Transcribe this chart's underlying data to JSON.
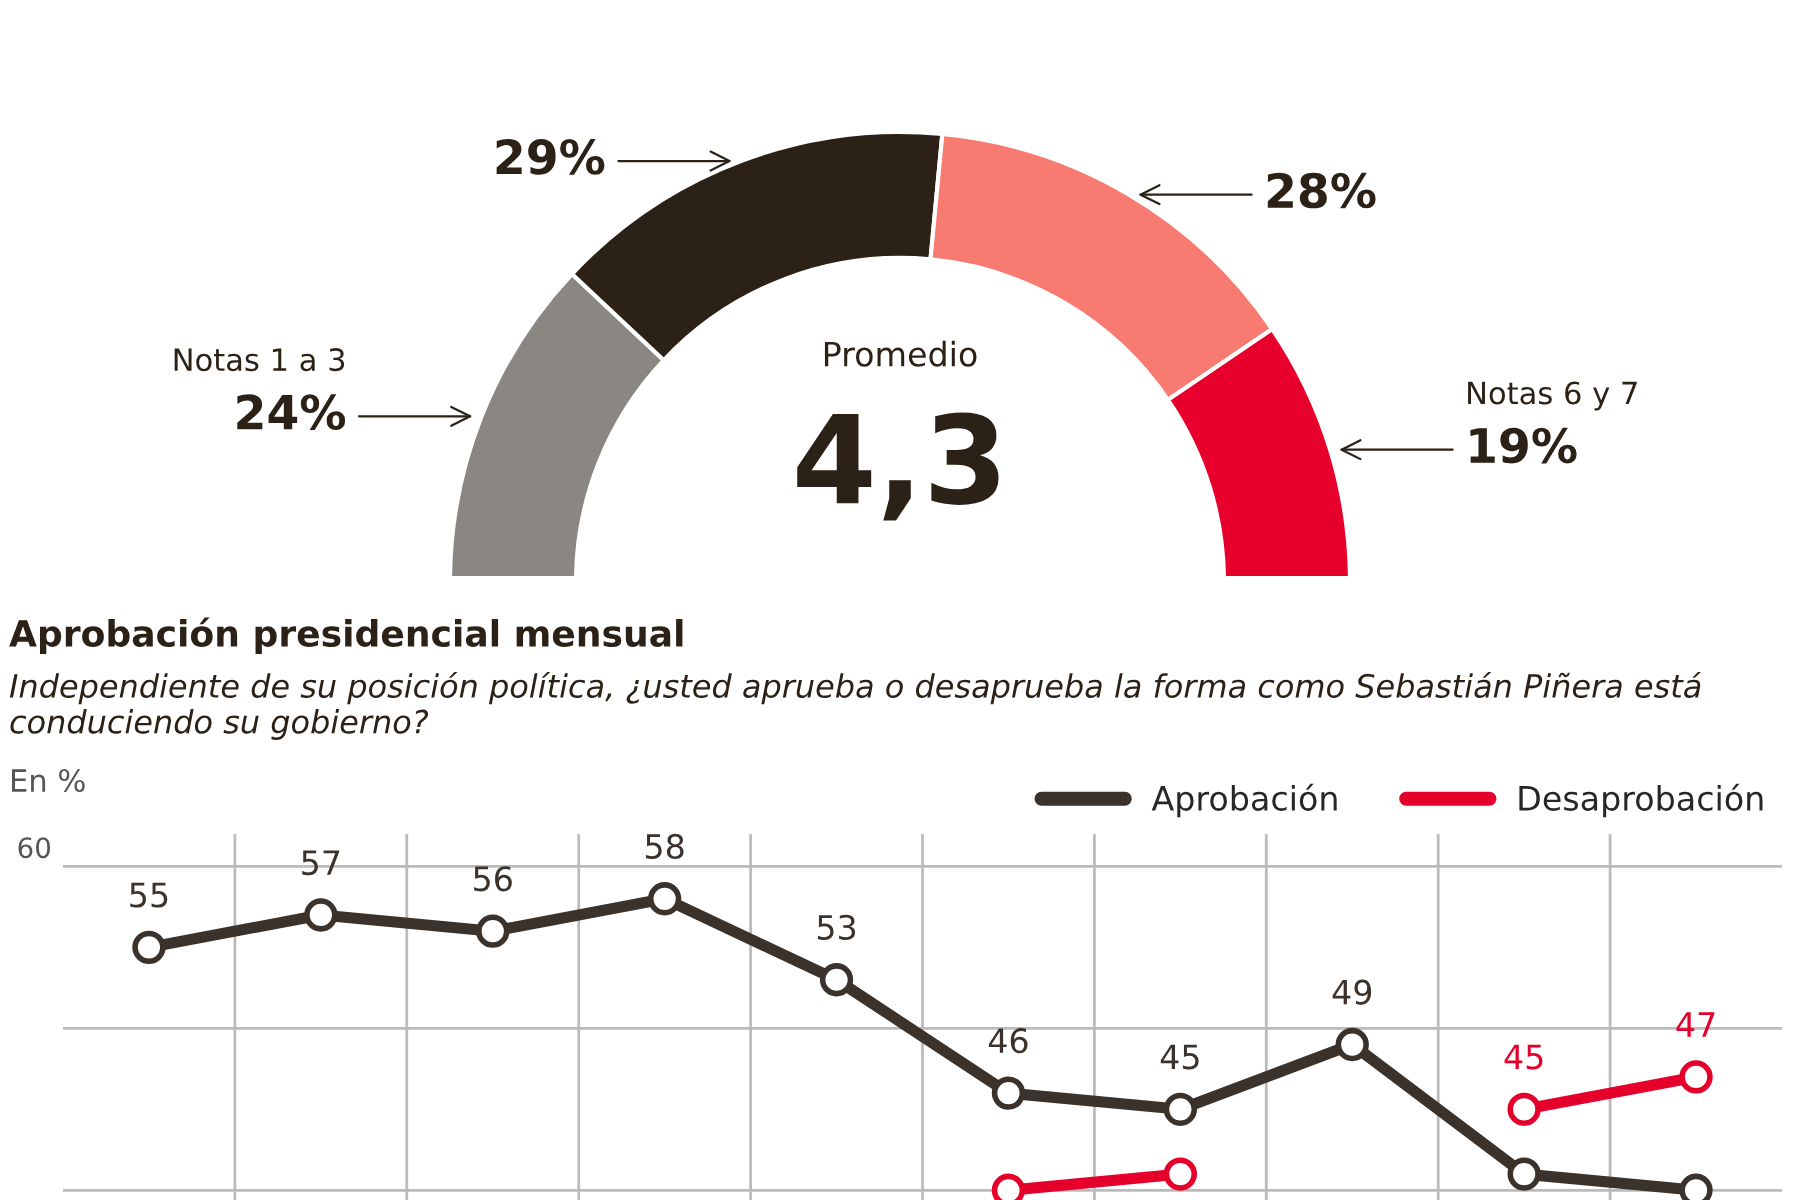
{
  "chart_data": [
    {
      "type": "donut",
      "categories": [
        "Notas 1 a 3",
        null,
        null,
        "Notas 6 y 7"
      ],
      "values": [
        24,
        29,
        28,
        19
      ],
      "colors": [
        "#8a8782",
        "#2b2116",
        "#f77b70",
        "#e8002d"
      ],
      "value_labels": [
        "24%",
        "29%",
        "28%",
        "19%"
      ],
      "annotations": [
        "Promedio",
        "4,3"
      ]
    },
    {
      "type": "line",
      "title": "Aprobación presidencial mensual",
      "subtitle": "Independiente de su posición política, ¿usted aprueba o desaprueba la forma como Sebastián Piñera está conduciendo su gobierno?",
      "ylabel": "En %",
      "categories": [
        null,
        null,
        null,
        null,
        null,
        null,
        null,
        null,
        null,
        null
      ],
      "series": [
        {
          "name": "Aprobación",
          "color": "#3a322b",
          "values": [
            55,
            57,
            56,
            58,
            53,
            46,
            45,
            49,
            41,
            40
          ],
          "value_labels": [
            "55",
            "57",
            "56",
            "58",
            "53",
            "46",
            "45",
            "49",
            null,
            null
          ]
        },
        {
          "name": "Desaprobación",
          "color": "#e4002b",
          "values": [
            null,
            null,
            null,
            null,
            null,
            40,
            41,
            null,
            45,
            47
          ],
          "value_labels": [
            null,
            null,
            null,
            null,
            null,
            null,
            null,
            null,
            "45",
            "47"
          ]
        }
      ],
      "ylim": [
        39.4,
        62
      ],
      "ref_lines": [
        {
          "axis": "y",
          "value": 60,
          "label": "60",
          "color": "#bbbbbb"
        },
        {
          "axis": "y",
          "value": 50,
          "label": null,
          "color": "#bbbbbb"
        },
        {
          "axis": "y",
          "value": 40,
          "label": null,
          "color": "#bbbbbb"
        }
      ],
      "grid": "x",
      "legend": "top right",
      "marker": "circle",
      "line_style": "solid"
    }
  ]
}
